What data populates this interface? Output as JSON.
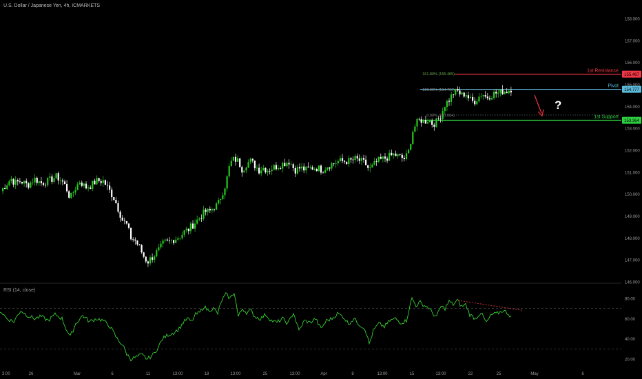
{
  "symbol_title": "U.S. Dollar / Japanese Yen, 4h, ICMARKETS",
  "rsi_label": "RSI (14, close)",
  "colors": {
    "background": "#000000",
    "candle_up": "#26c91e",
    "candle_down": "#ffffff",
    "resistance": "#f23645",
    "pivot": "#5bb8d8",
    "support": "#2ecc40",
    "rsi_line": "#39d133",
    "rsi_divergence": "#e0393e",
    "arrow": "#f23645",
    "fib_label": "#6ab04c"
  },
  "chart_data": [
    {
      "type": "candlestick",
      "ylim": [
        146.0,
        158.0
      ],
      "y_ticks": [
        "146.000",
        "147.000",
        "148.000",
        "149.000",
        "150.000",
        "151.000",
        "152.000",
        "153.000",
        "154.000",
        "155.000",
        "156.000",
        "157.000",
        "158.000"
      ],
      "x_ticks": [
        "3:00",
        "26",
        "Mar",
        "6",
        "11",
        "13:00",
        "18",
        "13:00",
        "25",
        "13:00",
        "Apr",
        "8",
        "13:00",
        "15",
        "13:00",
        "22",
        "25",
        "May",
        "6"
      ],
      "close_path": [
        [
          0,
          150.1
        ],
        [
          8,
          150.4
        ],
        [
          16,
          150.7
        ],
        [
          22,
          150.5
        ],
        [
          30,
          150.6
        ],
        [
          40,
          150.4
        ],
        [
          50,
          150.7
        ],
        [
          60,
          150.5
        ],
        [
          70,
          150.6
        ],
        [
          82,
          150.8
        ],
        [
          90,
          150.6
        ],
        [
          96,
          150.3
        ],
        [
          102,
          149.8
        ],
        [
          108,
          150.2
        ],
        [
          116,
          150.6
        ],
        [
          124,
          150.3
        ],
        [
          132,
          150.4
        ],
        [
          140,
          150.6
        ],
        [
          150,
          150.6
        ],
        [
          158,
          150.2
        ],
        [
          166,
          149.8
        ],
        [
          172,
          149.3
        ],
        [
          178,
          148.8
        ],
        [
          184,
          148.6
        ],
        [
          190,
          148.0
        ],
        [
          196,
          147.9
        ],
        [
          202,
          147.6
        ],
        [
          208,
          147.2
        ],
        [
          214,
          146.9
        ],
        [
          220,
          147.1
        ],
        [
          226,
          147.3
        ],
        [
          232,
          147.5
        ],
        [
          238,
          147.8
        ],
        [
          244,
          147.8
        ],
        [
          250,
          147.9
        ],
        [
          256,
          148.0
        ],
        [
          262,
          148.1
        ],
        [
          268,
          148.3
        ],
        [
          274,
          148.4
        ],
        [
          280,
          148.6
        ],
        [
          286,
          148.8
        ],
        [
          292,
          149.0
        ],
        [
          298,
          149.2
        ],
        [
          304,
          149.2
        ],
        [
          310,
          149.4
        ],
        [
          316,
          149.5
        ],
        [
          322,
          150.0
        ],
        [
          328,
          150.5
        ],
        [
          334,
          151.4
        ],
        [
          340,
          151.6
        ],
        [
          346,
          151.5
        ],
        [
          352,
          151.1
        ],
        [
          358,
          151.4
        ],
        [
          364,
          151.5
        ],
        [
          370,
          151.3
        ],
        [
          376,
          151.1
        ],
        [
          382,
          151.2
        ],
        [
          388,
          151.1
        ],
        [
          396,
          151.2
        ],
        [
          404,
          151.3
        ],
        [
          412,
          151.4
        ],
        [
          420,
          151.5
        ],
        [
          428,
          151.1
        ],
        [
          436,
          151.2
        ],
        [
          444,
          151.1
        ],
        [
          452,
          151.2
        ],
        [
          460,
          151.2
        ],
        [
          468,
          151.1
        ],
        [
          476,
          151.3
        ],
        [
          484,
          151.4
        ],
        [
          492,
          151.5
        ],
        [
          500,
          151.5
        ],
        [
          508,
          151.5
        ],
        [
          516,
          151.6
        ],
        [
          524,
          151.5
        ],
        [
          530,
          151.4
        ],
        [
          536,
          151.1
        ],
        [
          542,
          151.3
        ],
        [
          548,
          151.5
        ],
        [
          556,
          151.6
        ],
        [
          564,
          151.7
        ],
        [
          572,
          151.8
        ],
        [
          580,
          151.7
        ],
        [
          588,
          151.6
        ],
        [
          594,
          152.0
        ],
        [
          598,
          152.8
        ],
        [
          604,
          153.2
        ],
        [
          610,
          153.4
        ],
        [
          616,
          153.3
        ],
        [
          622,
          153.4
        ],
        [
          628,
          153.2
        ],
        [
          634,
          153.3
        ],
        [
          640,
          153.6
        ],
        [
          646,
          154.1
        ],
        [
          652,
          154.3
        ],
        [
          658,
          154.6
        ],
        [
          664,
          154.7
        ],
        [
          670,
          154.5
        ],
        [
          676,
          154.6
        ],
        [
          682,
          154.3
        ],
        [
          688,
          154.2
        ],
        [
          694,
          154.4
        ],
        [
          700,
          154.6
        ],
        [
          706,
          154.4
        ],
        [
          712,
          154.5
        ],
        [
          718,
          154.6
        ],
        [
          724,
          154.6
        ],
        [
          730,
          154.7
        ],
        [
          736,
          154.7
        ],
        [
          742,
          154.8
        ]
      ],
      "levels": [
        {
          "name": "1st Resistance",
          "value": 155.467,
          "label": "155.467"
        },
        {
          "name": "Pivot",
          "value": 154.777,
          "label": "154.777"
        },
        {
          "name": "1st Support",
          "value": 153.364,
          "label": "153.364"
        }
      ],
      "fib_levels": [
        {
          "label": "161.80% (155.485)",
          "value": 155.485
        },
        {
          "label": "100.00% (154.766)",
          "value": 154.766
        },
        {
          "label": "0.00% (153.604)",
          "value": 153.604
        }
      ],
      "annotation": "?"
    },
    {
      "type": "line",
      "name": "RSI (14, close)",
      "ylim": [
        15,
        90
      ],
      "y_ticks": [
        "20.00",
        "40.00",
        "60.00",
        "80.00"
      ],
      "reference_lines": [
        70,
        30
      ],
      "values_path": [
        [
          0,
          68
        ],
        [
          10,
          60
        ],
        [
          20,
          57
        ],
        [
          30,
          68
        ],
        [
          40,
          63
        ],
        [
          50,
          60
        ],
        [
          60,
          62
        ],
        [
          70,
          58
        ],
        [
          80,
          64
        ],
        [
          90,
          60
        ],
        [
          96,
          50
        ],
        [
          102,
          42
        ],
        [
          110,
          55
        ],
        [
          120,
          63
        ],
        [
          130,
          57
        ],
        [
          140,
          60
        ],
        [
          150,
          58
        ],
        [
          160,
          52
        ],
        [
          170,
          40
        ],
        [
          178,
          34
        ],
        [
          184,
          25
        ],
        [
          190,
          20
        ],
        [
          198,
          22
        ],
        [
          206,
          24
        ],
        [
          214,
          20
        ],
        [
          222,
          24
        ],
        [
          230,
          32
        ],
        [
          236,
          40
        ],
        [
          244,
          44
        ],
        [
          252,
          46
        ],
        [
          260,
          50
        ],
        [
          266,
          56
        ],
        [
          272,
          60
        ],
        [
          278,
          57
        ],
        [
          284,
          64
        ],
        [
          290,
          66
        ],
        [
          296,
          72
        ],
        [
          302,
          68
        ],
        [
          310,
          70
        ],
        [
          316,
          65
        ],
        [
          322,
          78
        ],
        [
          328,
          84
        ],
        [
          334,
          80
        ],
        [
          340,
          86
        ],
        [
          346,
          62
        ],
        [
          352,
          70
        ],
        [
          358,
          66
        ],
        [
          364,
          68
        ],
        [
          370,
          62
        ],
        [
          378,
          60
        ],
        [
          386,
          64
        ],
        [
          394,
          58
        ],
        [
          402,
          56
        ],
        [
          410,
          60
        ],
        [
          418,
          55
        ],
        [
          426,
          66
        ],
        [
          434,
          48
        ],
        [
          442,
          58
        ],
        [
          450,
          56
        ],
        [
          458,
          60
        ],
        [
          466,
          50
        ],
        [
          474,
          58
        ],
        [
          482,
          60
        ],
        [
          490,
          65
        ],
        [
          498,
          62
        ],
        [
          506,
          55
        ],
        [
          514,
          60
        ],
        [
          522,
          54
        ],
        [
          530,
          50
        ],
        [
          536,
          35
        ],
        [
          542,
          48
        ],
        [
          550,
          55
        ],
        [
          558,
          52
        ],
        [
          566,
          58
        ],
        [
          574,
          60
        ],
        [
          582,
          56
        ],
        [
          590,
          58
        ],
        [
          594,
          70
        ],
        [
          598,
          80
        ],
        [
          604,
          73
        ],
        [
          610,
          76
        ],
        [
          616,
          73
        ],
        [
          622,
          71
        ],
        [
          628,
          65
        ],
        [
          634,
          62
        ],
        [
          640,
          72
        ],
        [
          646,
          70
        ],
        [
          652,
          77
        ],
        [
          658,
          74
        ],
        [
          664,
          78
        ],
        [
          670,
          72
        ],
        [
          676,
          74
        ],
        [
          682,
          64
        ],
        [
          690,
          60
        ],
        [
          698,
          66
        ],
        [
          706,
          56
        ],
        [
          714,
          64
        ],
        [
          722,
          65
        ],
        [
          730,
          68
        ],
        [
          736,
          66
        ],
        [
          742,
          62
        ]
      ]
    }
  ]
}
